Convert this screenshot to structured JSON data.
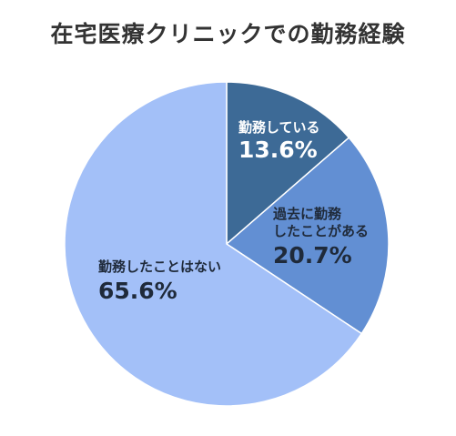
{
  "chart_data": {
    "type": "pie",
    "title": "在宅医療クリニックでの勤務経験",
    "slices": [
      {
        "label": "勤務している",
        "label_lines": [
          "勤務している"
        ],
        "value": 13.6,
        "value_text": "13.6%",
        "color": "#3d6a96",
        "text_color": "#ffffff"
      },
      {
        "label": "過去に勤務したことがある",
        "label_lines": [
          "過去に勤務",
          "したことがある"
        ],
        "value": 20.7,
        "value_text": "20.7%",
        "color": "#628fd3",
        "text_color": "#1f2a3a"
      },
      {
        "label": "勤務したことはない",
        "label_lines": [
          "勤務したことはない"
        ],
        "value": 65.6,
        "value_text": "65.6%",
        "color": "#a3c0f8",
        "text_color": "#1f2a3a"
      }
    ],
    "start_angle_deg": 0,
    "direction": "clockwise",
    "legend": "none"
  }
}
